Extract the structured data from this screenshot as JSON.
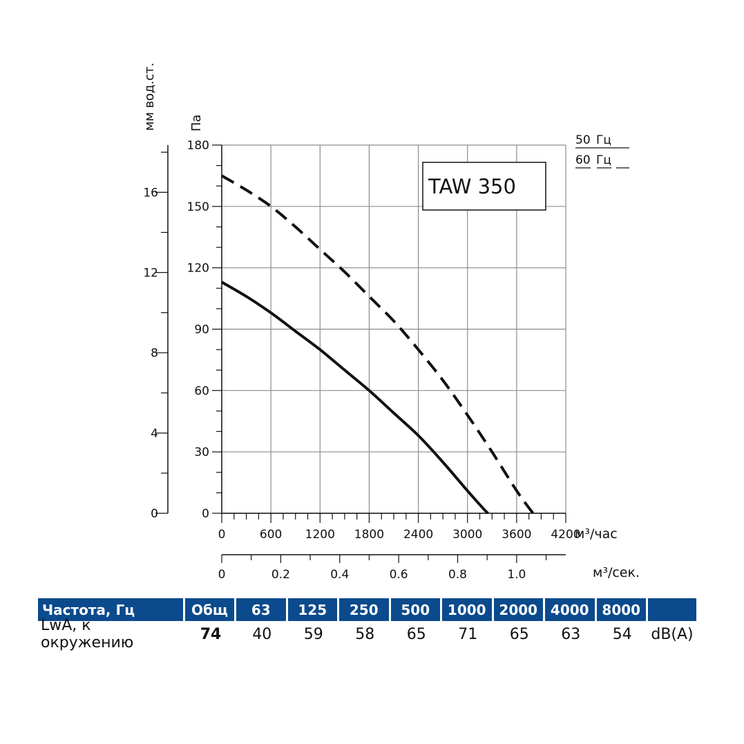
{
  "chart_data": {
    "type": "line",
    "title": "TAW 350",
    "xlabel": "м³/час",
    "x2label": "м³/сек.",
    "ylabel": "Па",
    "y2label": "мм вод.ст.",
    "xlim": [
      0,
      4200
    ],
    "ylim": [
      0,
      180
    ],
    "x_ticks": [
      "0",
      "600",
      "1200",
      "1800",
      "2400",
      "3000",
      "3600",
      "4200"
    ],
    "y_ticks": [
      "0",
      "30",
      "60",
      "90",
      "120",
      "150",
      "180"
    ],
    "x2_ticks": [
      "0",
      "0.2",
      "0.4",
      "0.6",
      "0.8",
      "1.0"
    ],
    "y2_ticks": [
      "0",
      "4",
      "8",
      "12",
      "16"
    ],
    "legend": {
      "position": "top-right",
      "entries": [
        {
          "label": "50 Гц",
          "style": "solid"
        },
        {
          "label": "60 Гц",
          "style": "dashed"
        }
      ]
    },
    "series": [
      {
        "name": "50 Гц",
        "style": "solid",
        "x": [
          0,
          300,
          600,
          900,
          1200,
          1500,
          1800,
          2100,
          2400,
          2700,
          3000,
          3200,
          3250
        ],
        "y": [
          113,
          106,
          98,
          89,
          80,
          70,
          60,
          49,
          38,
          25,
          11,
          2,
          0
        ]
      },
      {
        "name": "60 Гц",
        "style": "dashed",
        "x": [
          0,
          300,
          600,
          900,
          1200,
          1500,
          1800,
          2100,
          2400,
          2700,
          3000,
          3300,
          3600,
          3800
        ],
        "y": [
          165,
          158,
          150,
          140,
          129,
          118,
          106,
          94,
          80,
          65,
          48,
          30,
          11,
          0
        ]
      }
    ]
  },
  "table": {
    "header": [
      "Частота, Гц",
      "Общ",
      "63",
      "125",
      "250",
      "500",
      "1000",
      "2000",
      "4000",
      "8000",
      ""
    ],
    "row": [
      "LwA, к окружению",
      "74",
      "40",
      "59",
      "58",
      "65",
      "71",
      "65",
      "63",
      "54",
      "dB(A)"
    ]
  }
}
